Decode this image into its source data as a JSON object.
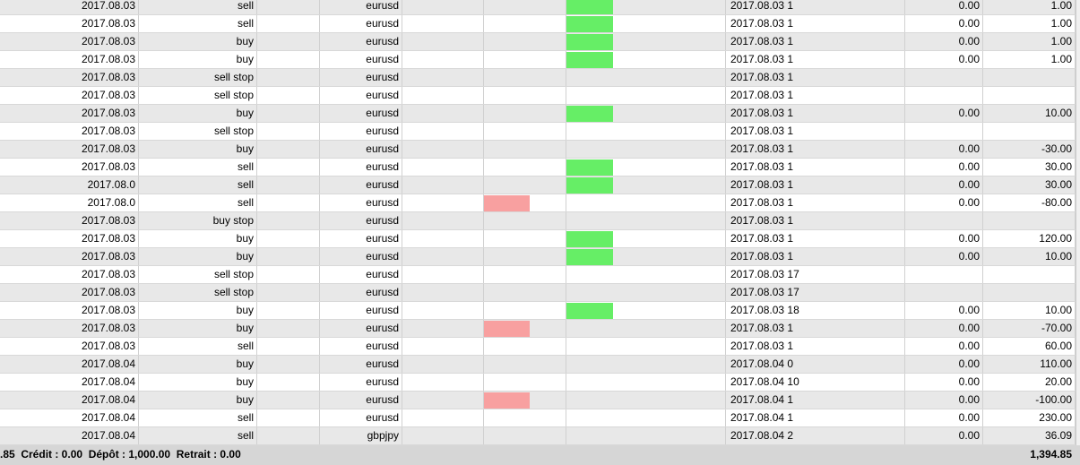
{
  "table": {
    "rows": [
      {
        "open": "2017.08.03",
        "type": "sell",
        "symbol": "eurusd",
        "tp": "#66ee66",
        "close": "2017.08.03 1",
        "commission": "0.00",
        "profit": "1.00"
      },
      {
        "open": "2017.08.03",
        "type": "sell",
        "symbol": "eurusd",
        "tp": "#66ee66",
        "close": "2017.08.03 1",
        "commission": "0.00",
        "profit": "1.00"
      },
      {
        "open": "2017.08.03",
        "type": "buy",
        "symbol": "eurusd",
        "tp": "#66ee66",
        "close": "2017.08.03 1",
        "commission": "0.00",
        "profit": "1.00"
      },
      {
        "open": "2017.08.03",
        "type": "buy",
        "symbol": "eurusd",
        "tp": "#66ee66",
        "close": "2017.08.03 1",
        "commission": "0.00",
        "profit": "1.00"
      },
      {
        "open": "2017.08.03",
        "type": "sell stop",
        "symbol": "eurusd",
        "close": "2017.08.03 1"
      },
      {
        "open": "2017.08.03",
        "type": "sell stop",
        "symbol": "eurusd",
        "close": "2017.08.03 1"
      },
      {
        "open": "2017.08.03",
        "type": "buy",
        "symbol": "eurusd",
        "tp": "#66ee66",
        "close": "2017.08.03 1",
        "commission": "0.00",
        "profit": "10.00"
      },
      {
        "open": "2017.08.03",
        "type": "sell stop",
        "symbol": "eurusd",
        "close": "2017.08.03 1"
      },
      {
        "open": "2017.08.03",
        "type": "buy",
        "symbol": "eurusd",
        "close": "2017.08.03 1",
        "commission": "0.00",
        "profit": "-30.00"
      },
      {
        "open": "2017.08.03",
        "type": "sell",
        "symbol": "eurusd",
        "tp": "#66ee66",
        "close": "2017.08.03 1",
        "commission": "0.00",
        "profit": "30.00"
      },
      {
        "open": "2017.08.0",
        "type": "sell",
        "symbol": "eurusd",
        "tp": "#66ee66",
        "close": "2017.08.03 1",
        "commission": "0.00",
        "profit": "30.00"
      },
      {
        "open": "2017.08.0",
        "type": "sell",
        "symbol": "eurusd",
        "sl": "#f8a0a0",
        "close": "2017.08.03 1",
        "commission": "0.00",
        "profit": "-80.00"
      },
      {
        "open": "2017.08.03",
        "type": "buy stop",
        "symbol": "eurusd",
        "close": "2017.08.03 1"
      },
      {
        "open": "2017.08.03",
        "type": "buy",
        "symbol": "eurusd",
        "tp": "#66ee66",
        "close": "2017.08.03 1",
        "commission": "0.00",
        "profit": "120.00"
      },
      {
        "open": "2017.08.03",
        "type": "buy",
        "symbol": "eurusd",
        "tp": "#66ee66",
        "close": "2017.08.03 1",
        "commission": "0.00",
        "profit": "10.00"
      },
      {
        "open": "2017.08.03",
        "type": "sell stop",
        "symbol": "eurusd",
        "close": "2017.08.03 17"
      },
      {
        "open": "2017.08.03",
        "type": "sell stop",
        "symbol": "eurusd",
        "close": "2017.08.03 17"
      },
      {
        "open": "2017.08.03",
        "type": "buy",
        "symbol": "eurusd",
        "tp": "#66ee66",
        "close": "2017.08.03 18",
        "commission": "0.00",
        "profit": "10.00"
      },
      {
        "open": "2017.08.03",
        "type": "buy",
        "symbol": "eurusd",
        "sl": "#f8a0a0",
        "close": "2017.08.03 1",
        "commission": "0.00",
        "profit": "-70.00"
      },
      {
        "open": "2017.08.03",
        "type": "sell",
        "symbol": "eurusd",
        "close": "2017.08.03 1",
        "commission": "0.00",
        "profit": "60.00"
      },
      {
        "open": "2017.08.04",
        "type": "buy",
        "symbol": "eurusd",
        "close": "2017.08.04 0",
        "commission": "0.00",
        "profit": "110.00"
      },
      {
        "open": "2017.08.04",
        "type": "buy",
        "symbol": "eurusd",
        "close": "2017.08.04 10",
        "commission": "0.00",
        "profit": "20.00"
      },
      {
        "open": "2017.08.04",
        "type": "buy",
        "symbol": "eurusd",
        "sl": "#f8a0a0",
        "close": "2017.08.04 1",
        "commission": "0.00",
        "profit": "-100.00"
      },
      {
        "open": "2017.08.04",
        "type": "sell",
        "symbol": "eurusd",
        "close": "2017.08.04 1",
        "commission": "0.00",
        "profit": "230.00"
      },
      {
        "open": "2017.08.04",
        "type": "sell",
        "symbol": "gbpjpy",
        "close": "2017.08.04 2",
        "commission": "0.00",
        "profit": "36.09"
      }
    ]
  },
  "footer": {
    "summary": ".85  Crédit : 0.00  Dépôt : 1,000.00  Retrait : 0.00",
    "total": "1,394.85"
  }
}
